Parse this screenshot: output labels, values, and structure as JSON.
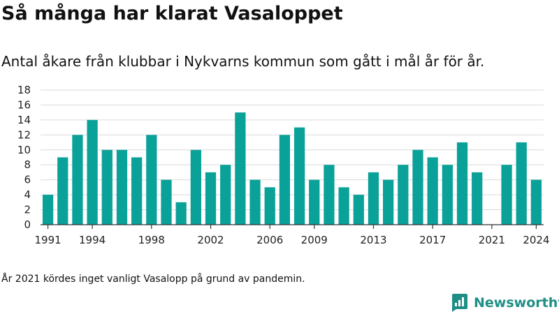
{
  "header": {
    "title": "Så många har klarat Vasaloppet",
    "subtitle": "Antal åkare från klubbar i Nykvarns kommun som gått i mål år för år."
  },
  "footer": {
    "note": "År 2021 kördes inget vanligt Vasalopp på grund av pandemin.",
    "brand": "Newsworthy"
  },
  "colors": {
    "bar": "#0aa199",
    "brand": "#1f8f85",
    "grid": "#d9d9d9",
    "axis": "#333333"
  },
  "chart_data": {
    "type": "bar",
    "x": [
      1991,
      1992,
      1993,
      1994,
      1995,
      1996,
      1997,
      1998,
      1999,
      2000,
      2001,
      2002,
      2003,
      2004,
      2005,
      2006,
      2007,
      2008,
      2009,
      2010,
      2011,
      2012,
      2013,
      2014,
      2015,
      2016,
      2017,
      2018,
      2019,
      2020,
      2021,
      2022,
      2023,
      2024
    ],
    "values": [
      4,
      9,
      12,
      14,
      10,
      10,
      9,
      12,
      6,
      3,
      10,
      7,
      8,
      15,
      6,
      5,
      12,
      13,
      6,
      8,
      5,
      4,
      7,
      6,
      8,
      10,
      9,
      8,
      11,
      7,
      null,
      8,
      11,
      6
    ],
    "x_tick_labels": [
      "1991",
      "1994",
      "1998",
      "2002",
      "2006",
      "2009",
      "2013",
      "2017",
      "2021",
      "2024"
    ],
    "y_ticks": [
      0,
      2,
      4,
      6,
      8,
      10,
      12,
      14,
      16,
      18
    ],
    "ylim": [
      0,
      18
    ],
    "grid": true,
    "legend": "none"
  }
}
